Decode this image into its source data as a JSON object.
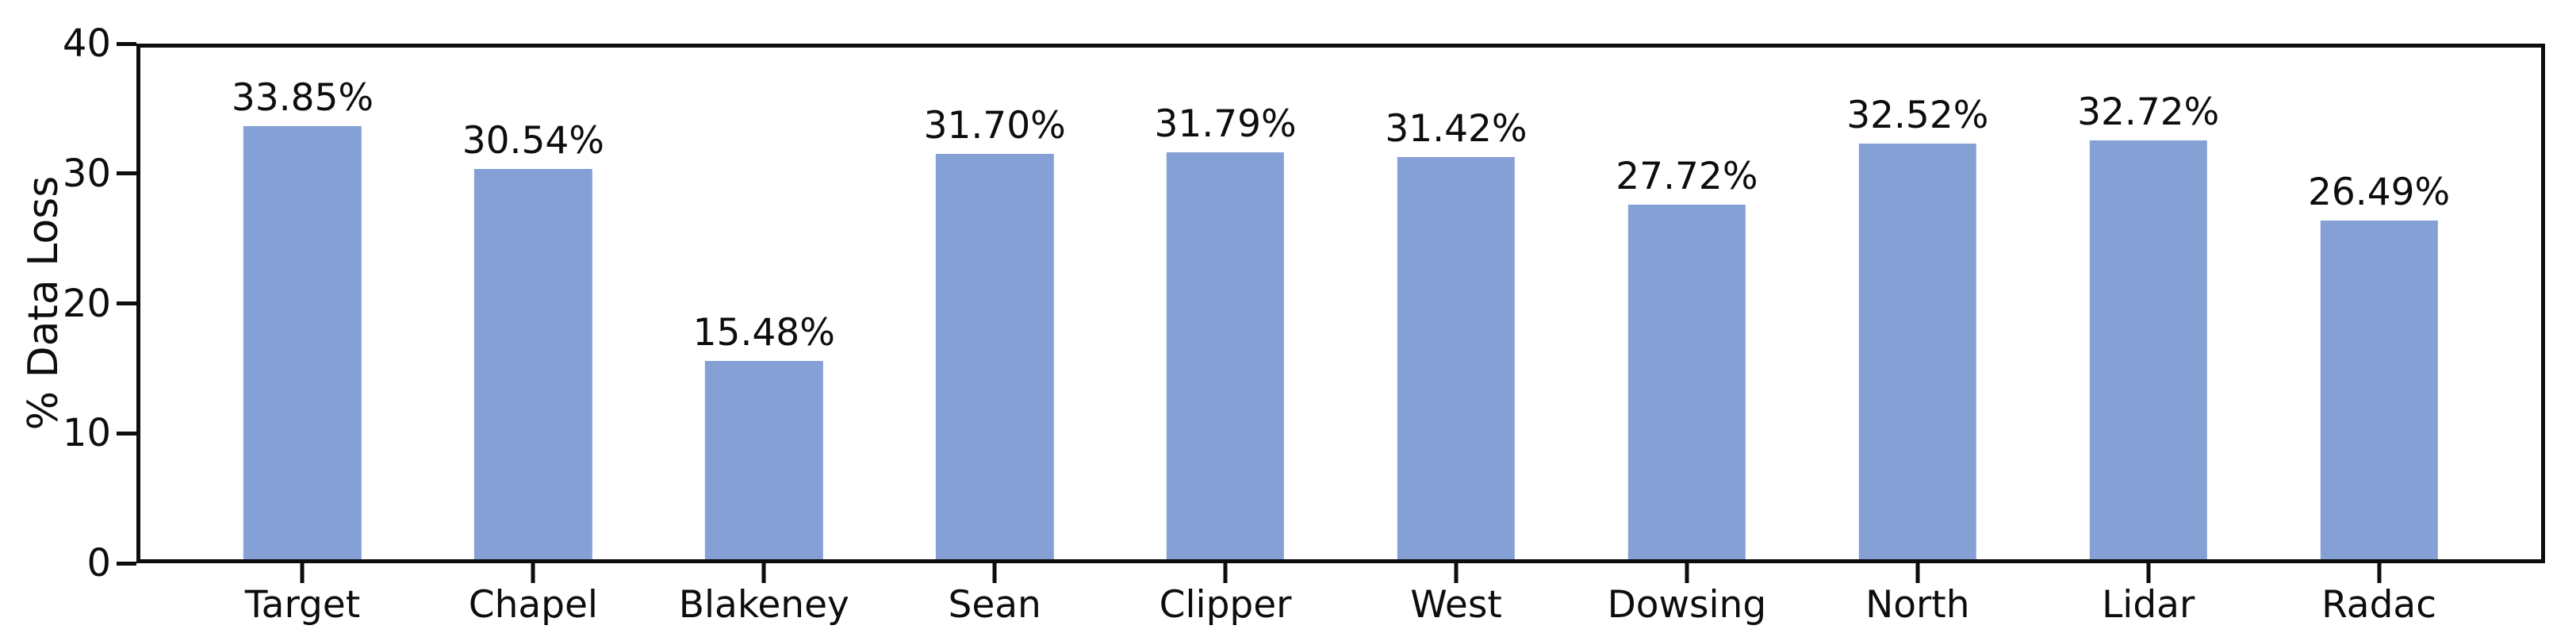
{
  "chart_data": {
    "type": "bar",
    "title": "",
    "xlabel": "",
    "ylabel": "% Data Loss",
    "categories": [
      "Target",
      "Chapel",
      "Blakeney",
      "Sean",
      "Clipper",
      "West",
      "Dowsing",
      "North",
      "Lidar",
      "Radac"
    ],
    "values": [
      33.85,
      30.54,
      15.48,
      31.7,
      31.79,
      31.42,
      27.72,
      32.52,
      32.72,
      26.49
    ],
    "value_labels": [
      "33.85%",
      "30.54%",
      "15.48%",
      "31.70%",
      "31.79%",
      "31.42%",
      "27.72%",
      "32.52%",
      "32.72%",
      "26.49%"
    ],
    "ylim": [
      0,
      40
    ],
    "yticks": [
      0,
      10,
      20,
      30,
      40
    ],
    "ytick_labels": [
      "0",
      "10",
      "20",
      "30",
      "40"
    ],
    "grid": false,
    "legend_position": "none",
    "bar_color": "#85a0d5",
    "axis_color": "#0d0d0d",
    "background_color": "#ffffff"
  }
}
